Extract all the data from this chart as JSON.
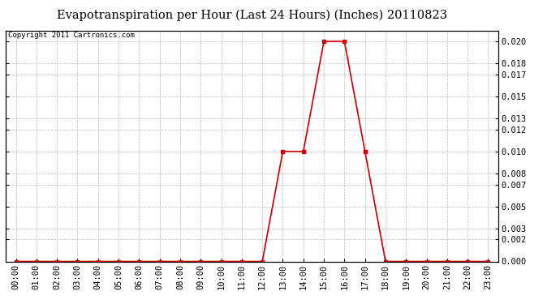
{
  "title": "Evapotranspiration per Hour (Last 24 Hours) (Inches) 20110823",
  "copyright": "Copyright 2011 Cartronics.com",
  "hours": [
    "00:00",
    "01:00",
    "02:00",
    "03:00",
    "04:00",
    "05:00",
    "06:00",
    "07:00",
    "08:00",
    "09:00",
    "10:00",
    "11:00",
    "12:00",
    "13:00",
    "14:00",
    "15:00",
    "16:00",
    "17:00",
    "18:00",
    "19:00",
    "20:00",
    "21:00",
    "22:00",
    "23:00"
  ],
  "values": [
    0.0,
    0.0,
    0.0,
    0.0,
    0.0,
    0.0,
    0.0,
    0.0,
    0.0,
    0.0,
    0.0,
    0.0,
    0.0,
    0.01,
    0.01,
    0.02,
    0.02,
    0.01,
    0.0,
    0.0,
    0.0,
    0.0,
    0.0,
    0.0
  ],
  "line_color": "#cc0000",
  "marker": "s",
  "marker_size": 2.5,
  "background_color": "#ffffff",
  "grid_color": "#bbbbbb",
  "ylim": [
    0.0,
    0.021
  ],
  "yticks": [
    0.0,
    0.002,
    0.003,
    0.005,
    0.007,
    0.008,
    0.01,
    0.012,
    0.013,
    0.015,
    0.017,
    0.018,
    0.02
  ],
  "title_fontsize": 10.5,
  "copyright_fontsize": 6.5,
  "tick_fontsize": 7.5
}
